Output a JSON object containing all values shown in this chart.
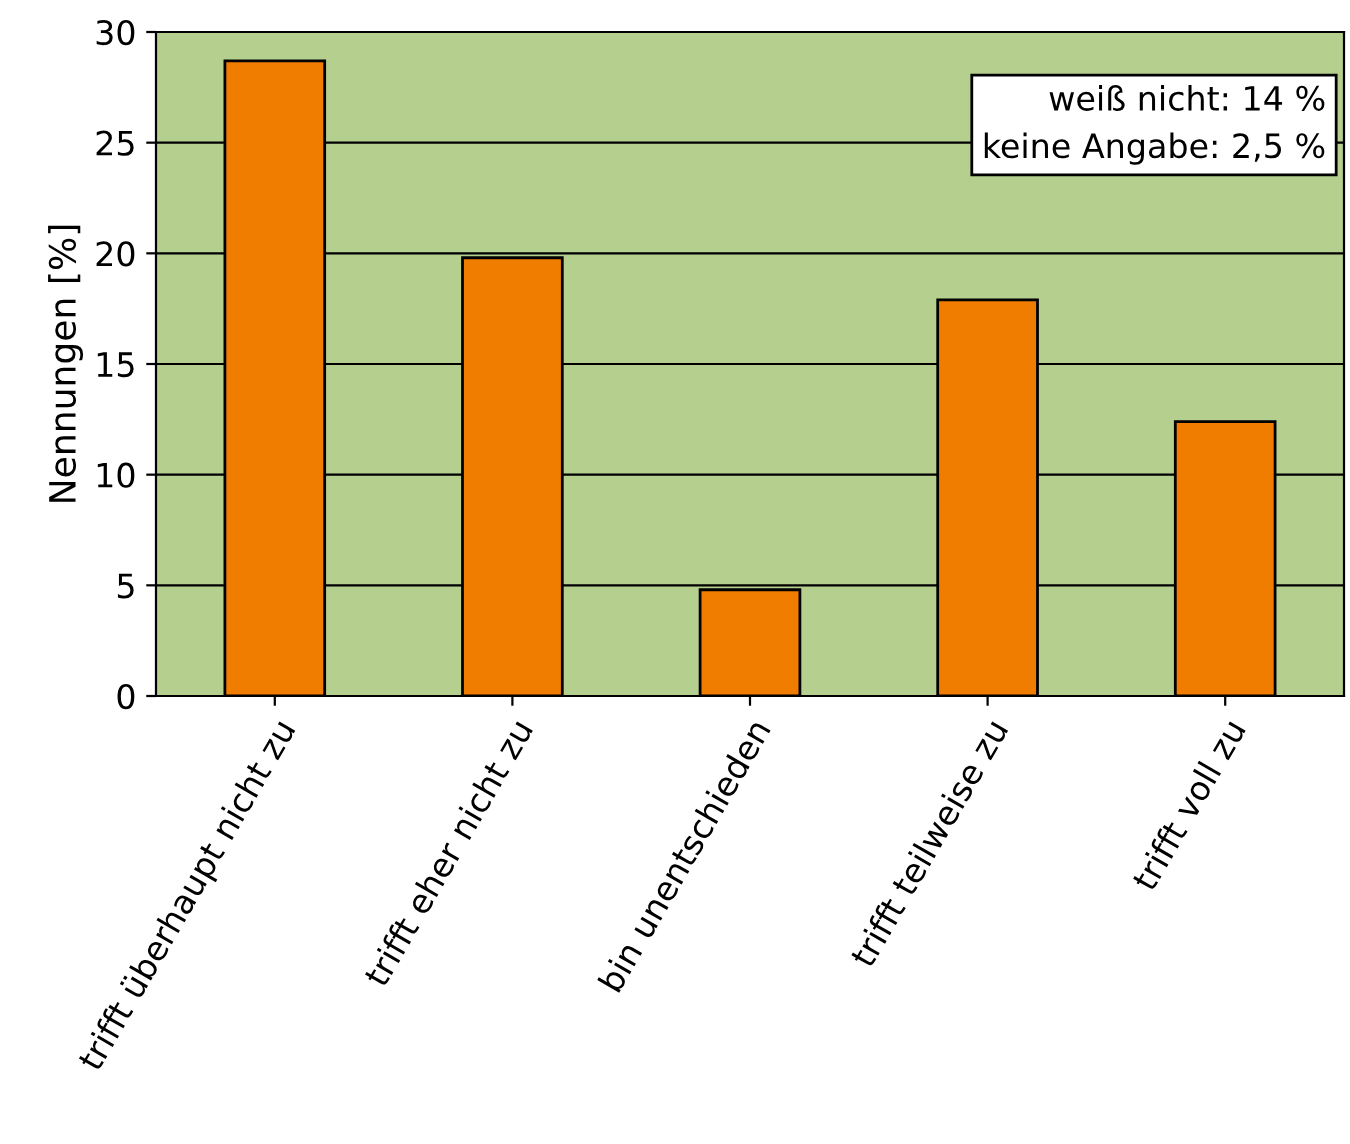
{
  "chart_data": {
    "type": "bar",
    "ylabel": "Nennungen [%]",
    "categories": [
      "trifft überhaupt nicht zu",
      "trifft eher nicht zu",
      "bin unentschieden",
      "trifft teilweise zu",
      "trifft voll zu"
    ],
    "values": [
      28.7,
      19.8,
      4.8,
      17.9,
      12.4
    ],
    "color": "#f07d00",
    "ylim": [
      0,
      30
    ],
    "yticks": [
      0,
      5,
      10,
      15,
      20,
      25,
      30
    ],
    "grid": "y",
    "annotations": [
      "weiß nicht: 14 %",
      "keine Angabe: 2,5 %"
    ]
  }
}
